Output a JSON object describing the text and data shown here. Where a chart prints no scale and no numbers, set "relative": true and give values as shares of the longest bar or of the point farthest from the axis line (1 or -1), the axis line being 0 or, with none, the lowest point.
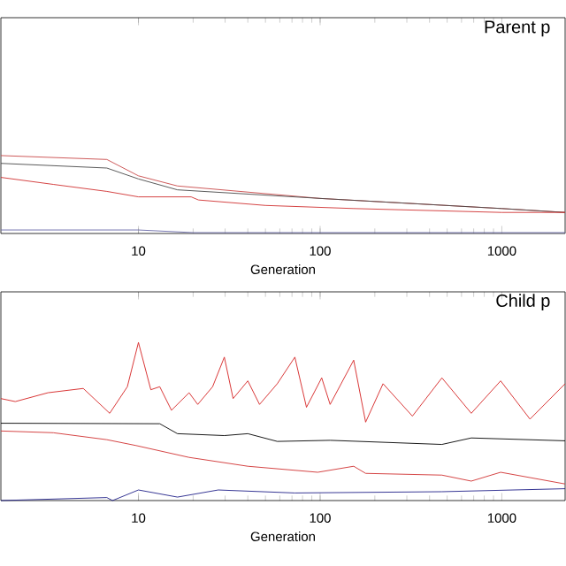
{
  "chart_data": [
    {
      "type": "line",
      "title": "Parent p",
      "xlabel": "Generation",
      "relative": true,
      "log": "x",
      "xlim": [
        1.75,
        2230
      ],
      "xticks": [
        10,
        100,
        1000
      ],
      "marker": "none",
      "series": [
        {
          "color": "#c84848",
          "x": [
            1.75,
            6.7,
            10,
            16.4,
            100,
            1000,
            2230
          ],
          "values": [
            1,
            0.95,
            0.74,
            0.61,
            0.45,
            0.32,
            0.27
          ]
        },
        {
          "color": "#484848",
          "x": [
            1.75,
            6.7,
            10,
            16.4,
            100,
            1000,
            2230
          ],
          "values": [
            0.9,
            0.84,
            0.7,
            0.56,
            0.45,
            0.32,
            0.27
          ]
        },
        {
          "color": "#d03030",
          "x": [
            1.75,
            3.4,
            6.7,
            10,
            19.5,
            21.4,
            50,
            153,
            1000,
            2230
          ],
          "values": [
            0.72,
            0.63,
            0.54,
            0.47,
            0.47,
            0.43,
            0.36,
            0.32,
            0.27,
            0.27
          ]
        },
        {
          "color": "#6868a8",
          "x": [
            1.75,
            10,
            20,
            2230
          ],
          "values": [
            0.045,
            0.045,
            0.011,
            0.011
          ]
        }
      ]
    },
    {
      "type": "line",
      "title": "Child p",
      "xlabel": "Generation",
      "relative": true,
      "log": "x",
      "xlim": [
        1.75,
        2230
      ],
      "xticks": [
        10,
        100,
        1000
      ],
      "marker": "none",
      "series": [
        {
          "color": "#d42020",
          "x": [
            1.75,
            2.1,
            3.18,
            4.97,
            6.95,
            8.69,
            10,
            11.7,
            13.1,
            15.2,
            19,
            21.2,
            25.6,
            29.7,
            33.2,
            40,
            46.4,
            58.1,
            72.6,
            84.1,
            102,
            113.5,
            153,
            178,
            222,
            322,
            468,
            679,
            985,
            1429,
            2230
          ],
          "values": [
            0.645,
            0.626,
            0.682,
            0.709,
            0.552,
            0.72,
            1,
            0.701,
            0.72,
            0.571,
            0.682,
            0.608,
            0.72,
            0.907,
            0.645,
            0.757,
            0.608,
            0.739,
            0.907,
            0.59,
            0.776,
            0.608,
            0.888,
            0.496,
            0.739,
            0.534,
            0.776,
            0.552,
            0.757,
            0.515,
            0.739
          ]
        },
        {
          "color": "#000000",
          "x": [
            1.75,
            13.1,
            16.4,
            29.7,
            40,
            58.1,
            113.5,
            468,
            679,
            2230
          ],
          "values": [
            0.489,
            0.486,
            0.423,
            0.411,
            0.423,
            0.374,
            0.381,
            0.355,
            0.396,
            0.378
          ]
        },
        {
          "color": "#d03030",
          "x": [
            1.75,
            3.4,
            6.7,
            9.7,
            19,
            40,
            97,
            153,
            178,
            468,
            679,
            985,
            2230
          ],
          "values": [
            0.44,
            0.429,
            0.385,
            0.348,
            0.273,
            0.217,
            0.179,
            0.217,
            0.172,
            0.161,
            0.123,
            0.179,
            0.105
          ]
        },
        {
          "color": "#202088",
          "x": [
            1.75,
            6.7,
            7.2,
            10,
            16.4,
            27.5,
            72.6,
            468,
            2230
          ],
          "values": [
            0.0,
            0.019,
            0.0,
            0.067,
            0.022,
            0.067,
            0.048,
            0.056,
            0.075
          ]
        }
      ]
    }
  ]
}
